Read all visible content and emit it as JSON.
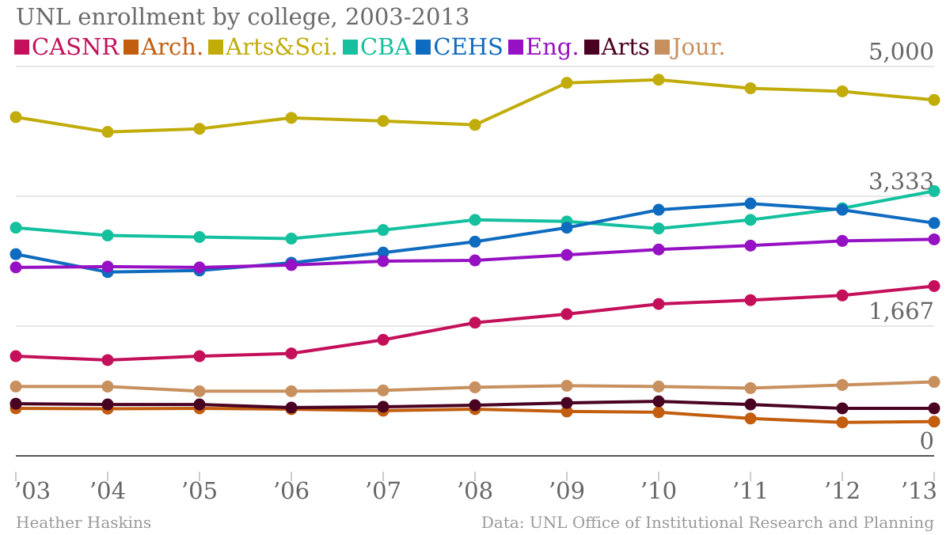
{
  "title": "UNL enrollment by college, 2003-2013",
  "credit": "Heather Haskins",
  "source": "Data: UNL Office of Institutional Research and Planning",
  "chart_data": {
    "type": "line",
    "title": "UNL enrollment by college, 2003-2013",
    "legend_position": "top",
    "grid": true,
    "x": [
      "’03",
      "’04",
      "’05",
      "’06",
      "’07",
      "’08",
      "’09",
      "’10",
      "’11",
      "’12",
      "’13"
    ],
    "ylim": [
      0,
      5000
    ],
    "yticks": [
      "0",
      "1,667",
      "3,333",
      "5,000"
    ],
    "series": [
      {
        "name": "CASNR",
        "color": "#c4105b",
        "values": [
          1280,
          1230,
          1280,
          1315,
          1490,
          1710,
          1820,
          1950,
          2000,
          2060,
          2180
        ]
      },
      {
        "name": "Arch.",
        "color": "#c25e0e",
        "values": [
          610,
          605,
          610,
          600,
          580,
          600,
          570,
          560,
          480,
          430,
          440
        ]
      },
      {
        "name": "Arts&Sci.",
        "color": "#c1ac0a",
        "values": [
          4350,
          4160,
          4200,
          4340,
          4300,
          4250,
          4790,
          4830,
          4720,
          4680,
          4570
        ]
      },
      {
        "name": "CBA",
        "color": "#14c09e",
        "values": [
          2930,
          2830,
          2810,
          2790,
          2900,
          3030,
          3010,
          2920,
          3030,
          3180,
          3400
        ]
      },
      {
        "name": "CEHS",
        "color": "#0f6bbf",
        "values": [
          2590,
          2360,
          2380,
          2480,
          2610,
          2750,
          2930,
          3160,
          3240,
          3160,
          2990
        ]
      },
      {
        "name": "Eng.",
        "color": "#9611c3",
        "values": [
          2420,
          2430,
          2420,
          2450,
          2500,
          2510,
          2580,
          2650,
          2700,
          2760,
          2780
        ]
      },
      {
        "name": "Arts",
        "color": "#4a0222",
        "values": [
          670,
          660,
          660,
          620,
          630,
          650,
          680,
          700,
          660,
          610,
          610
        ]
      },
      {
        "name": "Jour.",
        "color": "#c8905e",
        "values": [
          890,
          890,
          830,
          830,
          840,
          880,
          900,
          890,
          870,
          910,
          950
        ]
      }
    ]
  }
}
